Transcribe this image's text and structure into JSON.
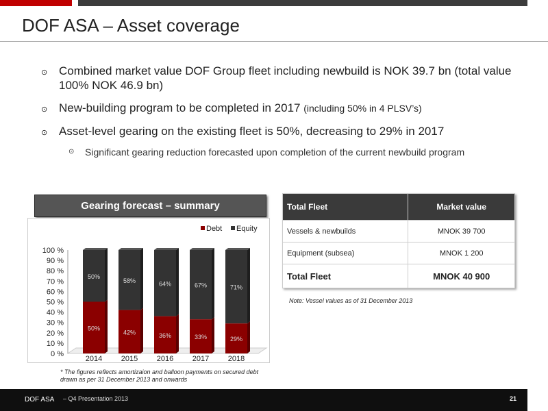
{
  "slide": {
    "title": "DOF ASA – Asset coverage"
  },
  "bullets": [
    {
      "text": "Combined market value DOF Group fleet including newbuild is NOK 39.7 bn (total value 100% NOK 46.9 bn)"
    },
    {
      "text": "New-building program to be completed in 2017 ",
      "small": "(including 50% in 4 PLSV’s)"
    },
    {
      "text": "Asset-level gearing on the existing fleet is 50%, decreasing to 29% in 2017"
    }
  ],
  "sub_bullet": "Significant gearing reduction forecasted upon completion of the current newbuild program",
  "chart_header": "Gearing  forecast – summary",
  "chart_data": {
    "type": "bar",
    "stacked": true,
    "title": "Gearing  forecast – summary",
    "categories": [
      "2014",
      "2015",
      "2016",
      "2017",
      "2018"
    ],
    "series": [
      {
        "name": "Debt",
        "values": [
          50,
          42,
          36,
          33,
          29
        ],
        "labels": [
          "50%",
          "42%",
          "36%",
          "33%",
          "29%"
        ],
        "color": "#8b0000"
      },
      {
        "name": "Equity",
        "values": [
          50,
          58,
          64,
          67,
          71
        ],
        "labels": [
          "50%",
          "58%",
          "64%",
          "67%",
          "71%"
        ],
        "color": "#333333"
      }
    ],
    "yticks": [
      "0 %",
      "10 %",
      "20 %",
      "30 %",
      "40 %",
      "50 %",
      "60 %",
      "70 %",
      "80 %",
      "90 %",
      "100 %"
    ],
    "ylim": [
      0,
      100
    ],
    "legend": "top-right",
    "grid": false
  },
  "chart_footnote": "* The figures reflects amortizaion and balloon payments on secured debt drawn as per 31 December 2013 and onwards",
  "fleet_table": {
    "headers": [
      "Total Fleet",
      "Market value"
    ],
    "rows": [
      [
        "Vessels & newbuilds",
        "MNOK  39 700"
      ],
      [
        "Equipment (subsea)",
        "MNOK   1 200"
      ]
    ],
    "total": [
      "Total Fleet",
      "MNOK  40 900"
    ]
  },
  "table_note": "Note: Vessel values as of  31 December 2013",
  "footer": {
    "brand": "DOF ASA",
    "presentation": "– Q4 Presentation 2013",
    "page": "21"
  },
  "colors": {
    "accent_red": "#c00000",
    "debt": "#8b0000",
    "equity": "#333333",
    "dark_bar": "#3c3c3c"
  },
  "icons": {
    "bullet": "circled-dot-icon"
  }
}
